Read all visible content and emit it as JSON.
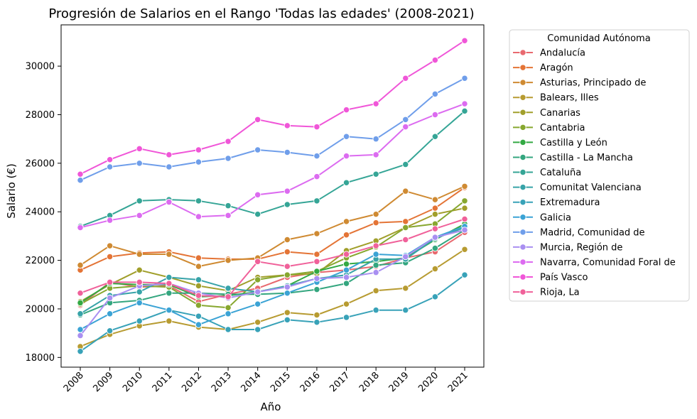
{
  "chart_data": {
    "type": "line",
    "title": "Progresión de Salarios en el Rango 'Todas las edades' (2008-2021)",
    "xlabel": "Año",
    "ylabel": "Salario (€)",
    "x": [
      2008,
      2009,
      2010,
      2011,
      2012,
      2013,
      2014,
      2015,
      2016,
      2017,
      2018,
      2019,
      2020,
      2021
    ],
    "x_tick_labels": [
      "2008",
      "2009",
      "2010",
      "2011",
      "2012",
      "2013",
      "2014",
      "2015",
      "2016",
      "2017",
      "2018",
      "2019",
      "2020",
      "2021"
    ],
    "ylim": [
      17600,
      31700
    ],
    "y_ticks": [
      18000,
      20000,
      22000,
      24000,
      26000,
      28000,
      30000
    ],
    "y_tick_labels": [
      "18000",
      "20000",
      "22000",
      "24000",
      "26000",
      "28000",
      "30000"
    ],
    "grid": false,
    "legend": {
      "title": "Comunidad Autónoma",
      "placement": "outside-right"
    },
    "series": [
      {
        "name": "Andalucía",
        "color": "#e8696f",
        "values": [
          20150,
          21100,
          20900,
          20950,
          20300,
          20600,
          20850,
          21300,
          21500,
          21600,
          21750,
          22100,
          22350,
          23150
        ]
      },
      {
        "name": "Aragón",
        "color": "#e47436",
        "values": [
          21600,
          22150,
          22300,
          22350,
          22100,
          22050,
          22050,
          22350,
          22250,
          23050,
          23550,
          23600,
          24150,
          25000
        ]
      },
      {
        "name": "Asturias, Principado de",
        "color": "#cf8a32",
        "values": [
          21800,
          22600,
          22250,
          22250,
          21750,
          22000,
          22100,
          22850,
          23100,
          23600,
          23900,
          24850,
          24500,
          25050
        ]
      },
      {
        "name": "Balears, Illes",
        "color": "#b79b31",
        "values": [
          18450,
          18950,
          19300,
          19500,
          19250,
          19150,
          19450,
          19850,
          19750,
          20200,
          20750,
          20850,
          21650,
          22450
        ]
      },
      {
        "name": "Canarias",
        "color": "#a19f2b",
        "values": [
          20300,
          21000,
          21600,
          21300,
          20950,
          20750,
          21300,
          21400,
          21450,
          22400,
          22800,
          23350,
          23900,
          24150
        ]
      },
      {
        "name": "Cantabria",
        "color": "#87a72f",
        "values": [
          20200,
          20850,
          20950,
          20900,
          20150,
          20050,
          21200,
          21400,
          21550,
          22100,
          22550,
          23350,
          23500,
          24450
        ]
      },
      {
        "name": "Castilla y León",
        "color": "#33a943",
        "values": [
          20250,
          21050,
          21000,
          21000,
          20500,
          20550,
          20700,
          20950,
          21550,
          21850,
          21950,
          22100,
          22850,
          23500
        ]
      },
      {
        "name": "Castilla - La Mancha",
        "color": "#34a67f",
        "values": [
          19750,
          20250,
          20350,
          20650,
          20650,
          20600,
          20600,
          20650,
          20800,
          21050,
          21800,
          21900,
          22500,
          23250
        ]
      },
      {
        "name": "Cataluña",
        "color": "#35a596",
        "values": [
          23400,
          23850,
          24450,
          24500,
          24450,
          24250,
          23900,
          24300,
          24450,
          25200,
          25550,
          25950,
          27100,
          28150
        ]
      },
      {
        "name": "Comunitat Valenciana",
        "color": "#37a3a8",
        "values": [
          19800,
          20550,
          20700,
          21300,
          21200,
          20850,
          20700,
          20950,
          21250,
          21400,
          22050,
          22050,
          22900,
          23350
        ]
      },
      {
        "name": "Extremadura",
        "color": "#38a2b8",
        "values": [
          18250,
          19100,
          19500,
          19950,
          19700,
          19150,
          19150,
          19550,
          19450,
          19650,
          19950,
          19950,
          20500,
          21400
        ]
      },
      {
        "name": "Galicia",
        "color": "#3ba3d5",
        "values": [
          19150,
          19800,
          20250,
          19950,
          19350,
          19800,
          20200,
          20650,
          21100,
          21600,
          22250,
          22200,
          22950,
          23400
        ]
      },
      {
        "name": "Madrid, Comunidad de",
        "color": "#6f9eea",
        "values": [
          25300,
          25850,
          26000,
          25850,
          26050,
          26200,
          26550,
          26450,
          26300,
          27100,
          27000,
          27800,
          28850,
          29500
        ]
      },
      {
        "name": "Murcia, Región de",
        "color": "#a98ff1",
        "values": [
          18900,
          20450,
          20950,
          21050,
          20650,
          20450,
          20700,
          20900,
          21250,
          21300,
          21500,
          22150,
          22950,
          23250
        ]
      },
      {
        "name": "Navarra, Comunidad Foral de",
        "color": "#dc6bf0",
        "values": [
          23350,
          23650,
          23850,
          24400,
          23800,
          23850,
          24700,
          24850,
          25450,
          26300,
          26350,
          27500,
          28000,
          28450
        ]
      },
      {
        "name": "País Vasco",
        "color": "#f056d8",
        "values": [
          25550,
          26150,
          26600,
          26350,
          26550,
          26900,
          27800,
          27550,
          27500,
          28200,
          28450,
          29500,
          30250,
          31050
        ]
      },
      {
        "name": "Rioja, La",
        "color": "#f0619a",
        "values": [
          20650,
          21100,
          21100,
          21050,
          20550,
          20500,
          21950,
          21750,
          21950,
          22250,
          22600,
          22850,
          23300,
          23700
        ]
      }
    ]
  }
}
